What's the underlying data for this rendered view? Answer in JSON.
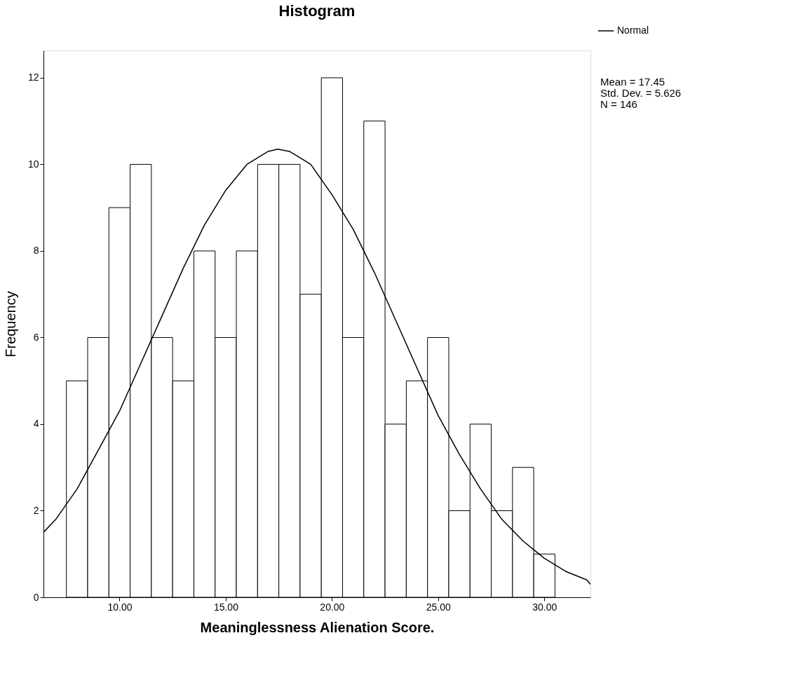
{
  "chart_data": {
    "type": "histogram",
    "title": "Histogram",
    "xlabel": "Meaninglessness Alienation Score.",
    "ylabel": "Frequency",
    "xlim": [
      6.42,
      32.17
    ],
    "ylim": [
      0,
      12.63
    ],
    "xticks": [
      {
        "value": 10,
        "label": "10.00"
      },
      {
        "value": 15,
        "label": "15.00"
      },
      {
        "value": 20,
        "label": "20.00"
      },
      {
        "value": 25,
        "label": "25.00"
      },
      {
        "value": 30,
        "label": "30.00"
      }
    ],
    "yticks": [
      0,
      2,
      4,
      6,
      8,
      10,
      12
    ],
    "legend": "top right",
    "annotations": [
      "Mean = 17.45",
      "Std. Dev. = 5.626",
      "N = 146"
    ],
    "series": [
      {
        "color": "#ffffff",
        "bins": [
          7.5,
          8.5,
          9.5,
          10.5,
          11.5,
          12.5,
          13.5,
          14.5,
          15.5,
          16.5,
          17.5,
          18.5,
          19.5,
          20.5,
          21.5,
          22.5,
          23.5,
          24.5,
          25.5,
          26.5,
          27.5,
          28.5,
          29.5,
          30.5
        ],
        "values": [
          5,
          6,
          9,
          10,
          6,
          5,
          8,
          6,
          8,
          10,
          10,
          7,
          12,
          6,
          11,
          4,
          5,
          6,
          2,
          4,
          2,
          3,
          1
        ]
      },
      {
        "type": "line",
        "name": "Normal",
        "color": "#000000",
        "x": [
          6.42,
          7,
          8,
          9,
          10,
          11,
          12,
          13,
          14,
          15,
          16,
          17,
          17.45,
          18,
          19,
          20,
          21,
          22,
          23,
          24,
          25,
          26,
          27,
          28,
          29,
          30,
          31,
          32,
          32.17
        ],
        "values": [
          1.5,
          1.8,
          2.5,
          3.4,
          4.3,
          5.4,
          6.5,
          7.6,
          8.6,
          9.4,
          10.0,
          10.3,
          10.35,
          10.3,
          10.0,
          9.3,
          8.5,
          7.5,
          6.4,
          5.3,
          4.2,
          3.3,
          2.5,
          1.8,
          1.3,
          0.9,
          0.6,
          0.4,
          0.3
        ]
      }
    ]
  }
}
